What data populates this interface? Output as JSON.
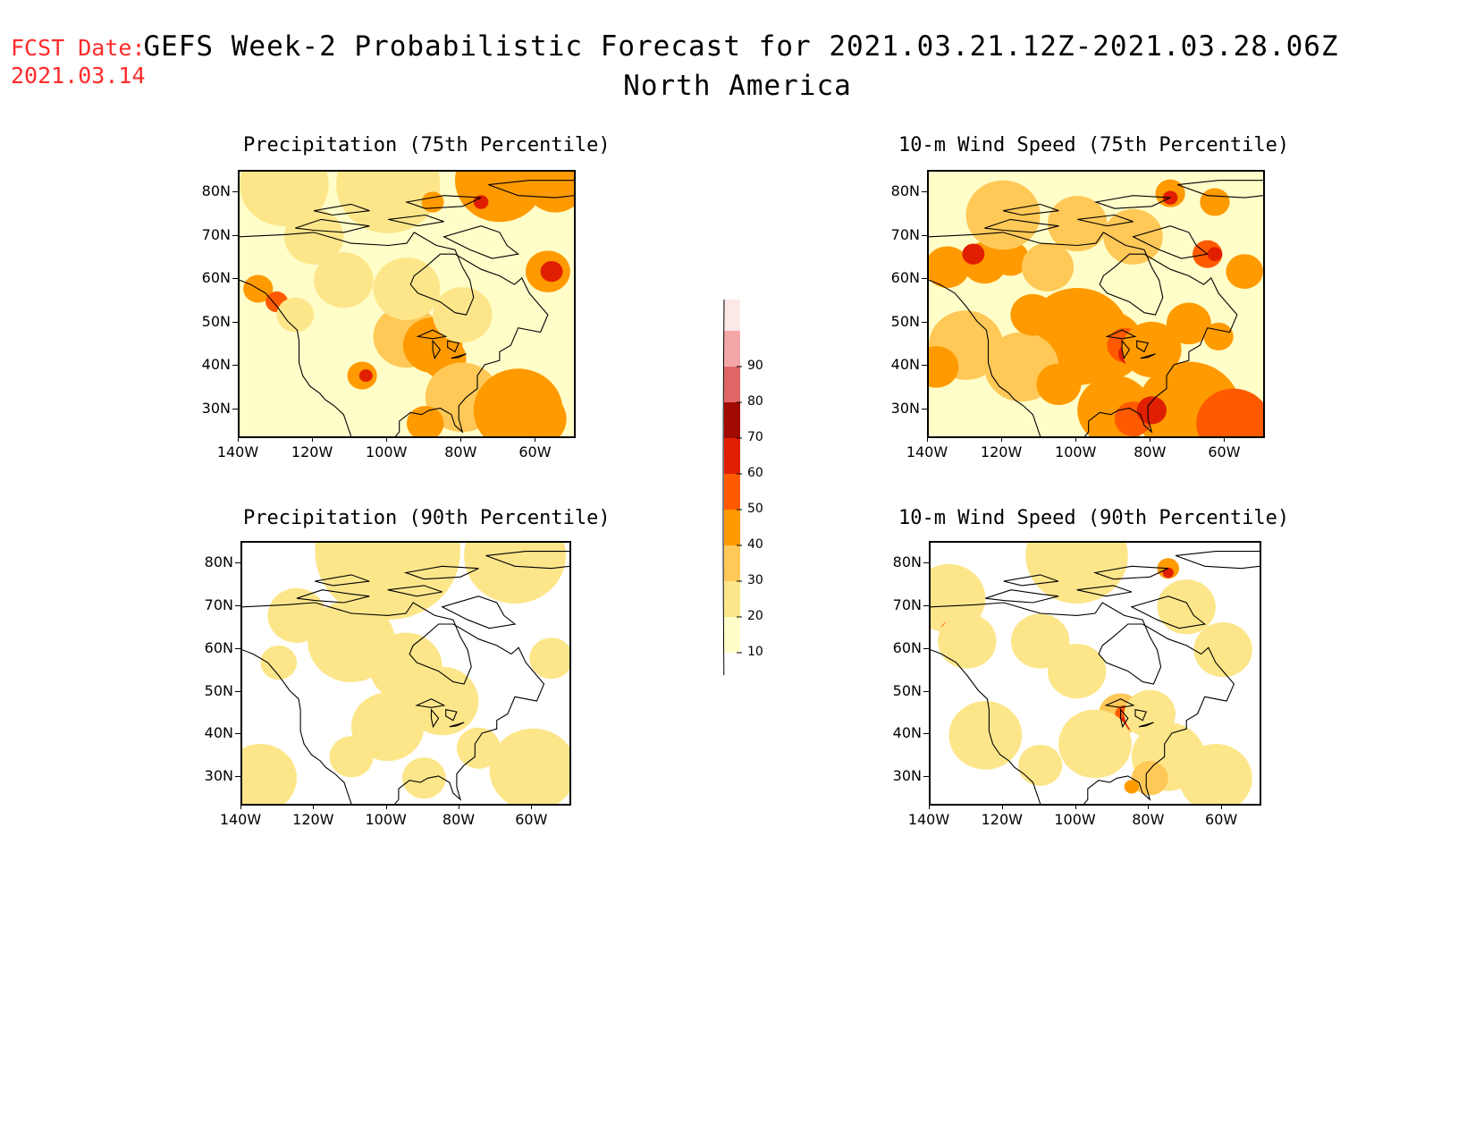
{
  "header": {
    "fcst_label": "FCST Date:",
    "fcst_date": "2021.03.14",
    "title": "GEFS Week-2 Probabilistic Forecast for 2021.03.21.12Z-2021.03.28.06Z",
    "subtitle": "North America"
  },
  "axes": {
    "lat_labels": [
      "80N",
      "70N",
      "60N",
      "50N",
      "40N",
      "30N"
    ],
    "lon_labels": [
      "140W",
      "120W",
      "100W",
      "80W",
      "60W"
    ]
  },
  "panels": [
    {
      "title": "Precipitation (75th Percentile)"
    },
    {
      "title": "10-m Wind Speed (75th Percentile)"
    },
    {
      "title": "Precipitation (90th Percentile)"
    },
    {
      "title": "10-m Wind Speed (90th Percentile)"
    }
  ],
  "colorbar": {
    "levels": [
      "10",
      "20",
      "30",
      "40",
      "50",
      "60",
      "70",
      "80",
      "90"
    ],
    "colors": [
      "#fffec9",
      "#fde68a",
      "#ffc857",
      "#ff9a00",
      "#ff5a00",
      "#e01f00",
      "#a00a00",
      "#e06666",
      "#f4a6a6",
      "#fde8e8"
    ]
  }
}
